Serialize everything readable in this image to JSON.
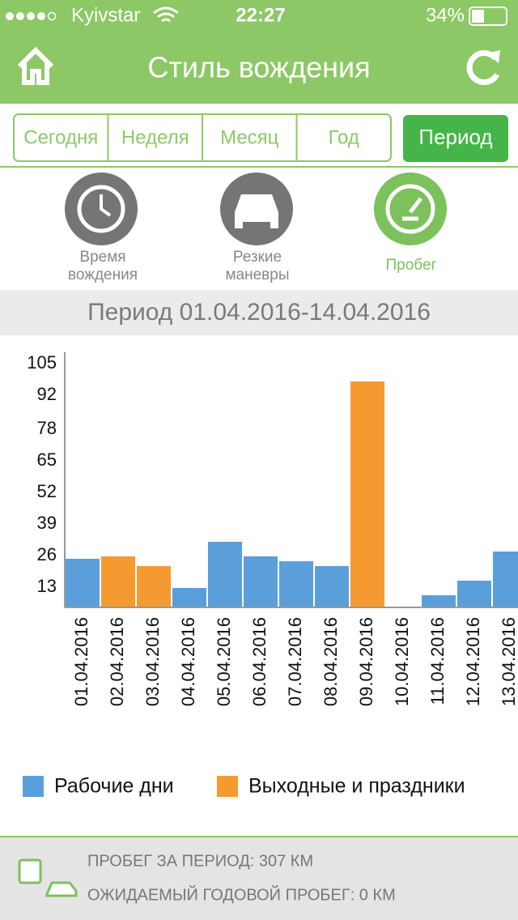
{
  "status": {
    "carrier": "Kyivstar",
    "time": "22:27",
    "battery": "34%"
  },
  "header": {
    "title": "Стиль вождения"
  },
  "tabs": [
    "Сегодня",
    "Неделя",
    "Месяц",
    "Год"
  ],
  "period_button": "Период",
  "modes": [
    {
      "label": "Время вождения"
    },
    {
      "label": "Резкие маневры"
    },
    {
      "label": "Пробег"
    }
  ],
  "period_label": "Период 01.04.2016-14.04.2016",
  "chart_data": {
    "type": "bar",
    "categories": [
      "01.04.2016",
      "02.04.2016",
      "03.04.2016",
      "04.04.2016",
      "05.04.2016",
      "06.04.2016",
      "07.04.2016",
      "08.04.2016",
      "09.04.2016",
      "10.04.2016",
      "11.04.2016",
      "12.04.2016",
      "13.04.2016"
    ],
    "series": [
      {
        "name": "Рабочие дни",
        "color": "#5a9fd9",
        "values": [
          20,
          null,
          null,
          8,
          27,
          21,
          19,
          17,
          null,
          null,
          5,
          11,
          23
        ]
      },
      {
        "name": "Выходные и праздники",
        "color": "#f59a31",
        "values": [
          null,
          21,
          17,
          null,
          null,
          null,
          null,
          null,
          93,
          0,
          null,
          null,
          null
        ]
      }
    ],
    "ylim": [
      0,
      105
    ],
    "yticks": [
      13,
      26,
      39,
      52,
      65,
      78,
      92,
      105
    ]
  },
  "footer": {
    "line1": "ПРОБЕГ ЗА ПЕРИОД: 307 КМ",
    "line2": "ОЖИДАЕМЫЙ ГОДОВОЙ ПРОБЕГ: 0 КМ"
  }
}
